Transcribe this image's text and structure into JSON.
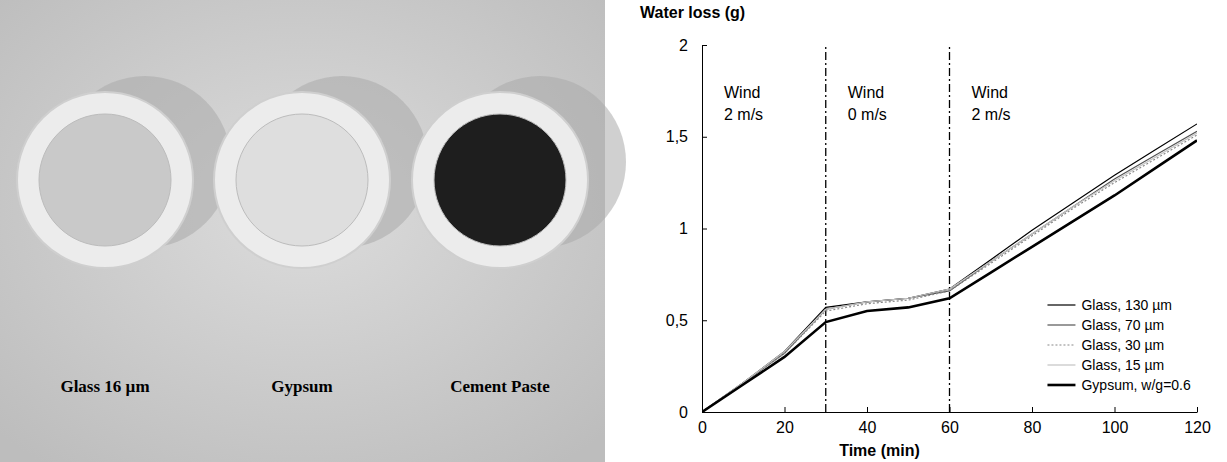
{
  "photo": {
    "labels": [
      "Glass 16 µm",
      "Gypsum",
      "Cement Paste"
    ]
  },
  "chart_data": {
    "type": "line",
    "y_label": "Water loss (g)",
    "x_label": "Time (min)",
    "xlim": [
      0,
      120
    ],
    "ylim": [
      0,
      2
    ],
    "xticks": [
      0,
      20,
      40,
      60,
      80,
      100,
      120
    ],
    "yticks": [
      0,
      {
        "value": 0.5,
        "label": "0,5"
      },
      1,
      {
        "value": 1.5,
        "label": "1,5"
      },
      2
    ],
    "phase_boundaries": [
      30,
      60
    ],
    "annotations": [
      [
        "Wind",
        "2 m/s"
      ],
      [
        "Wind",
        "0 m/s"
      ],
      [
        "Wind",
        "2 m/s"
      ]
    ],
    "legend": "lower right",
    "x": [
      0,
      10,
      20,
      30,
      40,
      50,
      60,
      70,
      80,
      90,
      100,
      110,
      120
    ],
    "series": [
      {
        "name": "Glass, 130 µm",
        "color": "#000000",
        "line_style": "solid",
        "values": [
          0,
          0.16,
          0.33,
          0.57,
          0.6,
          0.62,
          0.67,
          0.83,
          0.99,
          1.14,
          1.29,
          1.43,
          1.57
        ]
      },
      {
        "name": "Glass, 70 µm",
        "color": "#555555",
        "line_style": "solid",
        "values": [
          0,
          0.16,
          0.32,
          0.56,
          0.6,
          0.62,
          0.66,
          0.82,
          0.97,
          1.12,
          1.27,
          1.4,
          1.53
        ]
      },
      {
        "name": "Glass, 30 µm",
        "color": "#888888",
        "line_style": "dotted",
        "values": [
          0,
          0.16,
          0.32,
          0.55,
          0.59,
          0.61,
          0.66,
          0.81,
          0.96,
          1.11,
          1.25,
          1.38,
          1.51
        ]
      },
      {
        "name": "Glass, 15 µm",
        "color": "#c4c4c4",
        "line_style": "solid",
        "values": [
          0,
          0.16,
          0.33,
          0.56,
          0.6,
          0.62,
          0.67,
          0.82,
          0.97,
          1.12,
          1.26,
          1.39,
          1.52
        ]
      },
      {
        "name": "Gypsum, w/g=0.6",
        "color": "#000000",
        "line_style": "thick",
        "values": [
          0,
          0.15,
          0.3,
          0.49,
          0.55,
          0.57,
          0.62,
          0.76,
          0.9,
          1.04,
          1.18,
          1.33,
          1.48
        ]
      }
    ]
  }
}
